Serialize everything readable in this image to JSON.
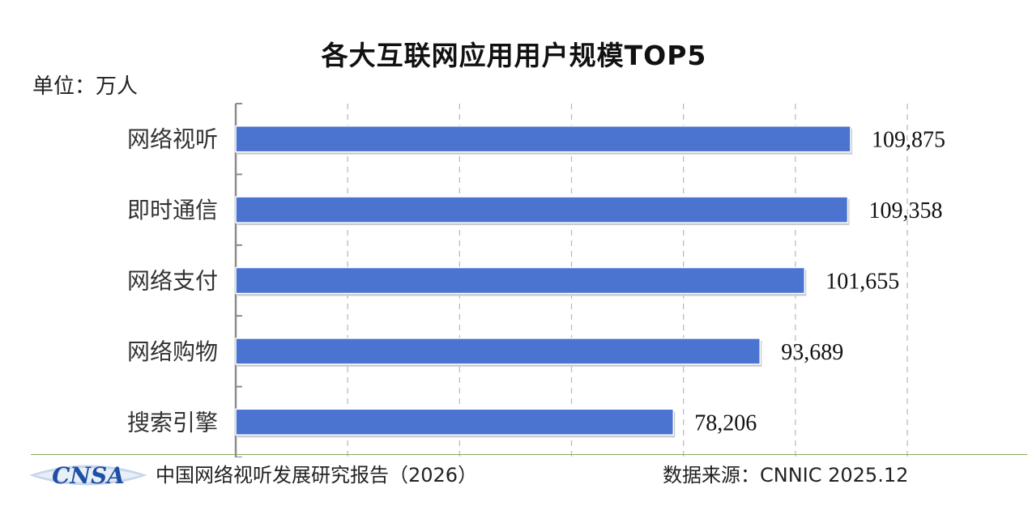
{
  "chart_data": {
    "type": "bar",
    "orientation": "horizontal",
    "title": "各大互联网应用用户规模TOP5",
    "unit": "单位：万人",
    "categories": [
      "网络视听",
      "即时通信",
      "网络支付",
      "网络购物",
      "搜索引擎"
    ],
    "values": [
      109875,
      109358,
      101655,
      93689,
      78206
    ],
    "value_labels": [
      "109,875",
      "109,358",
      "101,655",
      "93,689",
      "78,206"
    ],
    "xlim": [
      0,
      120000
    ],
    "grid": "vertical dashed",
    "bar_color": "#4a74d0"
  },
  "footer": {
    "logo_text": "CNSA",
    "report_title": "中国网络视听发展研究报告（2026）",
    "source": "数据来源：CNNIC 2025.12"
  },
  "colors": {
    "footer_line": "#8aa85f",
    "logo_blue": "#1f4fa3",
    "logo_light": "#c8d6ee"
  }
}
